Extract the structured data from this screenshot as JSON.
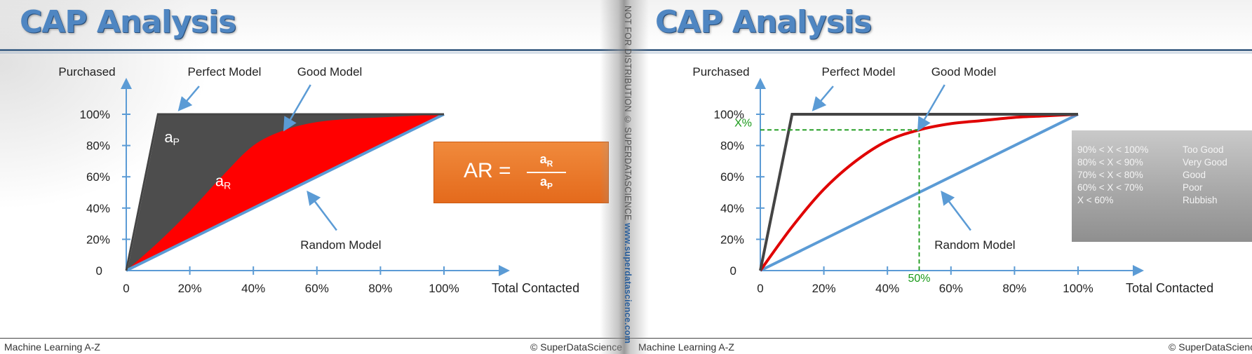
{
  "left_slide": {
    "title": "CAP Analysis",
    "footer_left": "Machine Learning A-Z",
    "footer_right": "© SuperDataScience",
    "ar_formula": {
      "lhs": "AR =",
      "numerator": "aR",
      "denominator": "aP"
    }
  },
  "right_slide": {
    "title": "CAP Analysis",
    "footer_left": "Machine Learning A-Z",
    "footer_right": "© SuperDataScience",
    "grades": [
      {
        "range": "90% < X < 100%",
        "label": "Too Good"
      },
      {
        "range": "80% < X < 90%",
        "label": "Very Good"
      },
      {
        "range": "70% < X < 80%",
        "label": "Good"
      },
      {
        "range": "60% < X < 70%",
        "label": "Poor"
      },
      {
        "range": "X < 60%",
        "label": "Rubbish"
      }
    ]
  },
  "watermark": {
    "text": "NOT FOR DISTRIBUTION © SUPERDATASCIENCE",
    "site": "www.superdatascience.com"
  },
  "chart_data": [
    {
      "type": "line",
      "ylabel": "Purchased",
      "xlabel": "Total Contacted",
      "x_ticks": [
        "0",
        "20%",
        "40%",
        "60%",
        "80%",
        "100%"
      ],
      "y_ticks": [
        "0",
        "20%",
        "40%",
        "60%",
        "80%",
        "100%"
      ],
      "xlim": [
        0,
        100
      ],
      "ylim": [
        0,
        100
      ],
      "series": [
        {
          "name": "Perfect Model",
          "x": [
            0,
            10,
            100
          ],
          "y": [
            0,
            100,
            100
          ],
          "color": "#444444"
        },
        {
          "name": "Good Model",
          "x": [
            0,
            10,
            20,
            30,
            40,
            50,
            60,
            70,
            80,
            90,
            100
          ],
          "y": [
            0,
            18,
            38,
            60,
            80,
            90,
            95,
            97,
            98,
            99,
            100
          ],
          "color": "#ff0000"
        },
        {
          "name": "Random Model",
          "x": [
            0,
            100
          ],
          "y": [
            0,
            100
          ],
          "color": "#5b9bd5"
        }
      ],
      "areas": [
        {
          "label": "aP",
          "between": [
            "Perfect Model",
            "Random Model"
          ],
          "color": "#4d4d4d"
        },
        {
          "label": "aR",
          "between": [
            "Good Model",
            "Random Model"
          ],
          "color": "#ff0000"
        }
      ],
      "annotations": [
        "Perfect Model",
        "Good Model",
        "Random Model",
        "aP",
        "aR"
      ]
    },
    {
      "type": "line",
      "ylabel": "Purchased",
      "xlabel": "Total Contacted",
      "x_ticks": [
        "0",
        "20%",
        "40%",
        "60%",
        "80%",
        "100%"
      ],
      "y_ticks": [
        "0",
        "20%",
        "40%",
        "60%",
        "80%",
        "100%"
      ],
      "xlim": [
        0,
        100
      ],
      "ylim": [
        0,
        100
      ],
      "series": [
        {
          "name": "Perfect Model",
          "x": [
            0,
            10,
            100
          ],
          "y": [
            0,
            100,
            100
          ],
          "color": "#444444"
        },
        {
          "name": "Good Model",
          "x": [
            0,
            10,
            20,
            30,
            40,
            50,
            60,
            70,
            80,
            90,
            100
          ],
          "y": [
            0,
            28,
            52,
            70,
            83,
            90,
            94,
            96,
            98,
            99,
            100
          ],
          "color": "#e00000"
        },
        {
          "name": "Random Model",
          "x": [
            0,
            100
          ],
          "y": [
            0,
            100
          ],
          "color": "#5b9bd5"
        }
      ],
      "reference": {
        "x": 50,
        "y": 90,
        "x_label": "50%",
        "y_label": "X%",
        "color": "#1a9a1a"
      },
      "annotations": [
        "Perfect Model",
        "Good Model",
        "Random Model"
      ]
    }
  ]
}
